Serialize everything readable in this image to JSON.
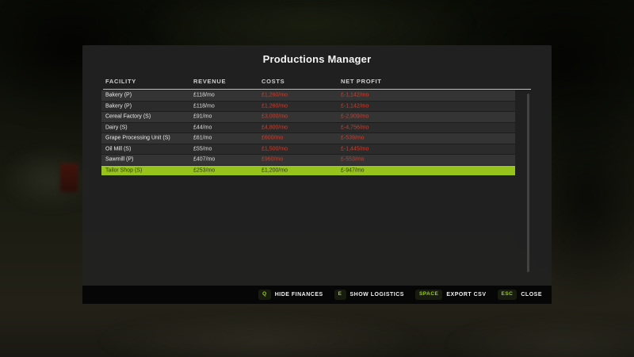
{
  "title": "Productions Manager",
  "columns": {
    "facility": "FACILITY",
    "revenue": "REVENUE",
    "costs": "COSTS",
    "net": "NET PROFIT"
  },
  "rows": [
    {
      "facility": "Bakery (P)",
      "revenue": "£118/mo",
      "costs": "£1,260/mo",
      "net": "£-1,142/mo"
    },
    {
      "facility": "Bakery (P)",
      "revenue": "£118/mo",
      "costs": "£1,260/mo",
      "net": "£-1,142/mo"
    },
    {
      "facility": "Cereal Factory (S)",
      "revenue": "£91/mo",
      "costs": "£3,000/mo",
      "net": "£-2,909/mo"
    },
    {
      "facility": "Dairy (S)",
      "revenue": "£44/mo",
      "costs": "£4,800/mo",
      "net": "£-4,756/mo"
    },
    {
      "facility": "Grape Processing Unit (S)",
      "revenue": "£61/mo",
      "costs": "£600/mo",
      "net": "£-539/mo"
    },
    {
      "facility": "Oil Mill (S)",
      "revenue": "£55/mo",
      "costs": "£1,500/mo",
      "net": "£-1,445/mo"
    },
    {
      "facility": "Sawmill (P)",
      "revenue": "£407/mo",
      "costs": "£960/mo",
      "net": "£-553/mo"
    },
    {
      "facility": "Tailor Shop (S)",
      "revenue": "£253/mo",
      "costs": "£1,200/mo",
      "net": "£-947/mo"
    }
  ],
  "selected_row": "Tailor Shop (S)",
  "shortcuts": [
    {
      "key": "Q",
      "label": "HIDE FINANCES"
    },
    {
      "key": "E",
      "label": "SHOW LOGISTICS"
    },
    {
      "key": "SPACE",
      "label": "EXPORT CSV"
    },
    {
      "key": "ESC",
      "label": "CLOSE"
    }
  ],
  "colors": {
    "accent_green": "#97c31d",
    "negative_red": "#bb4436",
    "panel_bg": "#212121",
    "bar_bg": "#060606"
  }
}
